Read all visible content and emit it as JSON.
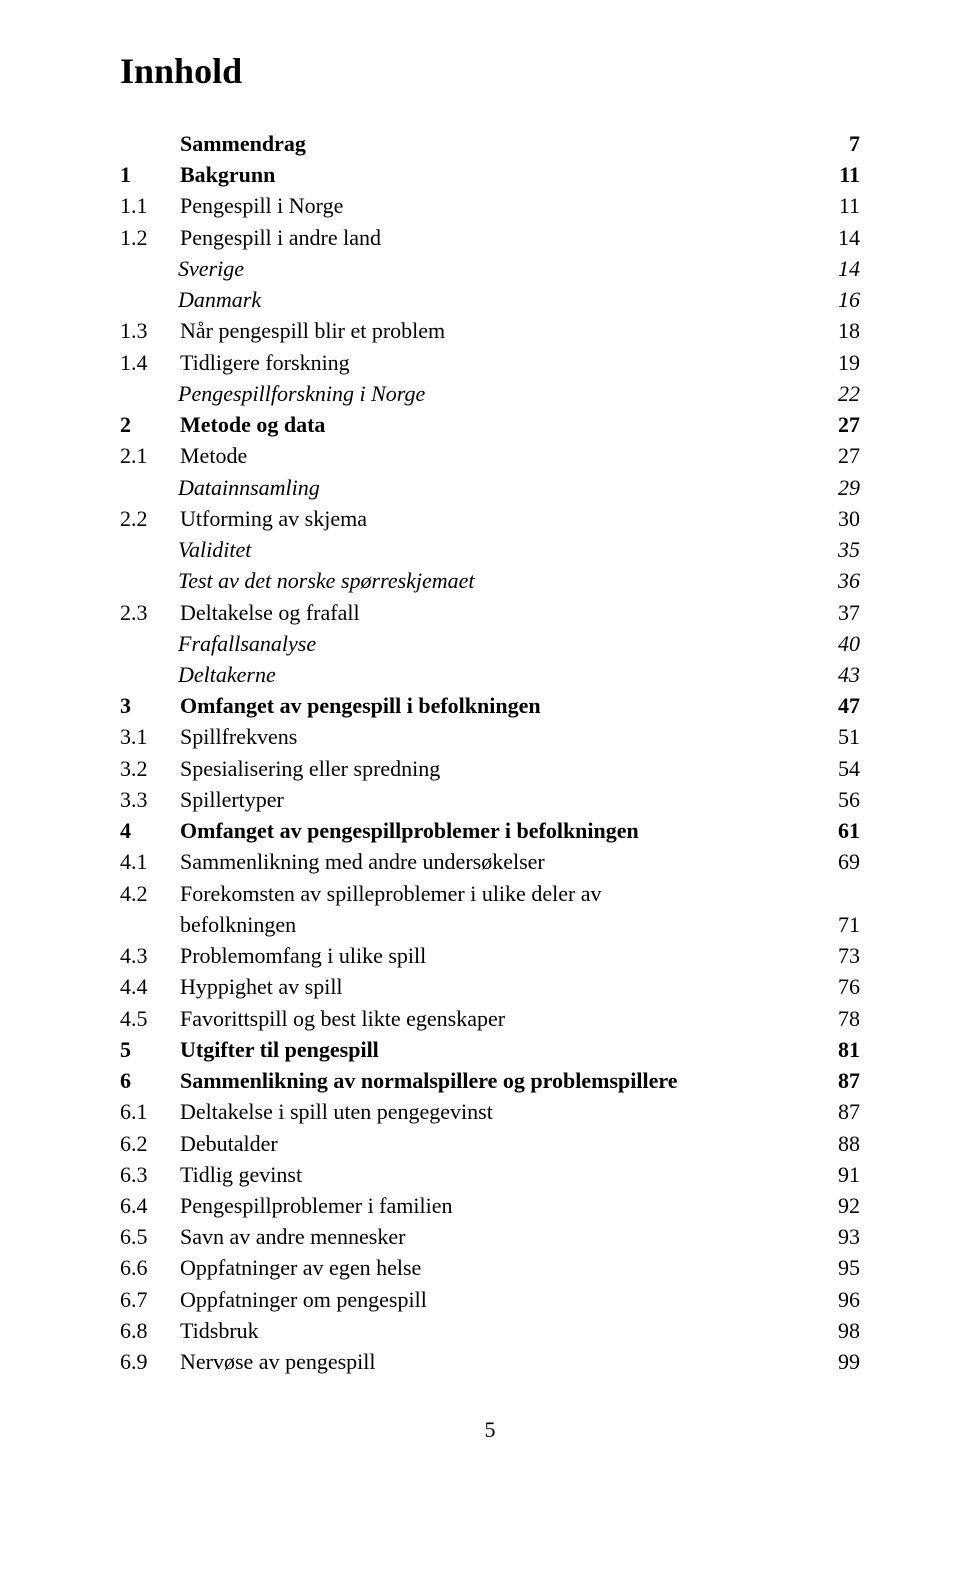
{
  "title": "Innhold",
  "footer": "5",
  "entries": [
    {
      "num": "",
      "label": "Sammendrag",
      "page": "7",
      "style": "bold",
      "level": 0
    },
    {
      "num": "1",
      "label": "Bakgrunn",
      "page": "11",
      "style": "bold",
      "level": 0
    },
    {
      "num": "1.1",
      "label": "Pengespill i Norge",
      "page": "11",
      "style": "",
      "level": 1
    },
    {
      "num": "1.2",
      "label": "Pengespill i andre land",
      "page": "14",
      "style": "",
      "level": 1
    },
    {
      "num": "",
      "label": "Sverige",
      "page": "14",
      "style": "italic",
      "level": 2
    },
    {
      "num": "",
      "label": "Danmark",
      "page": "16",
      "style": "italic",
      "level": 2
    },
    {
      "num": "1.3",
      "label": "Når pengespill blir et problem",
      "page": "18",
      "style": "",
      "level": 1
    },
    {
      "num": "1.4",
      "label": "Tidligere forskning",
      "page": "19",
      "style": "",
      "level": 1
    },
    {
      "num": "",
      "label": "Pengespillforskning i Norge",
      "page": "22",
      "style": "italic",
      "level": 2
    },
    {
      "num": "2",
      "label": "Metode og data",
      "page": "27",
      "style": "bold",
      "level": 0
    },
    {
      "num": "2.1",
      "label": "Metode",
      "page": "27",
      "style": "",
      "level": 1
    },
    {
      "num": "",
      "label": "Datainnsamling",
      "page": "29",
      "style": "italic",
      "level": 2
    },
    {
      "num": "2.2",
      "label": "Utforming av skjema",
      "page": "30",
      "style": "",
      "level": 1
    },
    {
      "num": "",
      "label": "Validitet",
      "page": "35",
      "style": "italic",
      "level": 2
    },
    {
      "num": "",
      "label": "Test av det norske spørreskjemaet",
      "page": "36",
      "style": "italic",
      "level": 2
    },
    {
      "num": "2.3",
      "label": "Deltakelse og frafall",
      "page": "37",
      "style": "",
      "level": 1
    },
    {
      "num": "",
      "label": "Frafallsanalyse",
      "page": "40",
      "style": "italic",
      "level": 2
    },
    {
      "num": "",
      "label": "Deltakerne",
      "page": "43",
      "style": "italic",
      "level": 2
    },
    {
      "num": "3",
      "label": "Omfanget av pengespill i befolkningen",
      "page": "47",
      "style": "bold",
      "level": 0
    },
    {
      "num": "3.1",
      "label": "Spillfrekvens",
      "page": "51",
      "style": "",
      "level": 1
    },
    {
      "num": "3.2",
      "label": "Spesialisering eller spredning",
      "page": "54",
      "style": "",
      "level": 1
    },
    {
      "num": "3.3",
      "label": "Spillertyper",
      "page": "56",
      "style": "",
      "level": 1
    },
    {
      "num": "4",
      "label": "Omfanget av pengespillproblemer i befolkningen",
      "page": "61",
      "style": "bold",
      "level": 0
    },
    {
      "num": "4.1",
      "label": "Sammenlikning med andre undersøkelser",
      "page": "69",
      "style": "",
      "level": 1
    },
    {
      "num": "4.2",
      "label": "Forekomsten av spilleproblemer i ulike deler av",
      "page": "",
      "style": "",
      "level": 1
    },
    {
      "num": "",
      "label": "befolkningen",
      "page": "71",
      "style": "",
      "level": 3
    },
    {
      "num": "4.3",
      "label": "Problemomfang i ulike spill",
      "page": "73",
      "style": "",
      "level": 1
    },
    {
      "num": "4.4",
      "label": "Hyppighet av spill",
      "page": "76",
      "style": "",
      "level": 1
    },
    {
      "num": "4.5",
      "label": "Favorittspill og best likte egenskaper",
      "page": "78",
      "style": "",
      "level": 1
    },
    {
      "num": "5",
      "label": "Utgifter til pengespill",
      "page": "81",
      "style": "bold",
      "level": 0
    },
    {
      "num": "6",
      "label": "Sammenlikning av normalspillere og problemspillere",
      "page": "87",
      "style": "bold",
      "level": 0
    },
    {
      "num": "6.1",
      "label": "Deltakelse i spill uten pengegevinst",
      "page": "87",
      "style": "",
      "level": 1
    },
    {
      "num": "6.2",
      "label": "Debutalder",
      "page": "88",
      "style": "",
      "level": 1
    },
    {
      "num": "6.3",
      "label": "Tidlig gevinst",
      "page": "91",
      "style": "",
      "level": 1
    },
    {
      "num": "6.4",
      "label": "Pengespillproblemer i familien",
      "page": "92",
      "style": "",
      "level": 1
    },
    {
      "num": "6.5",
      "label": "Savn av andre mennesker",
      "page": "93",
      "style": "",
      "level": 1
    },
    {
      "num": "6.6",
      "label": "Oppfatninger av egen helse",
      "page": "95",
      "style": "",
      "level": 1
    },
    {
      "num": "6.7",
      "label": "Oppfatninger om pengespill",
      "page": "96",
      "style": "",
      "level": 1
    },
    {
      "num": "6.8",
      "label": "Tidsbruk",
      "page": "98",
      "style": "",
      "level": 1
    },
    {
      "num": "6.9",
      "label": "Nervøse av pengespill",
      "page": "99",
      "style": "",
      "level": 1
    }
  ]
}
